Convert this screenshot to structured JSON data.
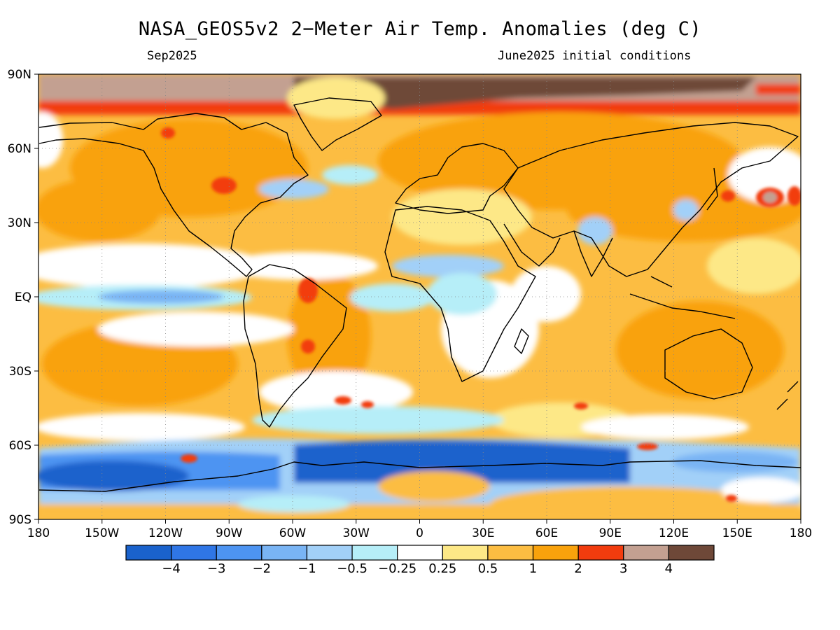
{
  "title": "NASA_GEOS5v2 2−Meter Air Temp. Anomalies (deg C)",
  "subtitle_left": "Sep2025",
  "subtitle_right": "June2025 initial conditions",
  "chart_data": {
    "type": "heatmap",
    "variable": "2-meter air temperature anomaly",
    "units": "deg C",
    "lon_range": [
      -180,
      180
    ],
    "lat_range": [
      -90,
      90
    ],
    "lat_ticks": [
      "90N",
      "60N",
      "30N",
      "EQ",
      "30S",
      "60S",
      "90S"
    ],
    "lat_values": [
      90,
      60,
      30,
      0,
      -30,
      -60,
      -90
    ],
    "lon_ticks": [
      "180",
      "150W",
      "120W",
      "90W",
      "60W",
      "30W",
      "0",
      "30E",
      "60E",
      "90E",
      "120E",
      "150E",
      "180"
    ],
    "lon_values": [
      -180,
      -150,
      -120,
      -90,
      -60,
      -30,
      0,
      30,
      60,
      90,
      120,
      150,
      180
    ],
    "colorbar": {
      "labels": [
        "−4",
        "−3",
        "−2",
        "−1",
        "−0.5",
        "−0.25",
        "0.25",
        "0.5",
        "1",
        "2",
        "3",
        "4"
      ],
      "levels": [
        -4,
        -3,
        -2,
        -1,
        -0.5,
        -0.25,
        0.25,
        0.5,
        1,
        2,
        3,
        4
      ],
      "colors": [
        "#1a62cc",
        "#2f76e6",
        "#4d94f2",
        "#79b4f4",
        "#a2d0f8",
        "#b6eef8",
        "#ffffff",
        "#fde887",
        "#fcbd42",
        "#f9a20c",
        "#f23c0e",
        "#c3a091",
        "#6e4838"
      ]
    },
    "grid": true,
    "features": [
      {
        "region": "Arctic Ocean",
        "anomaly": "> 3 (up to > 4 near 0-30E)"
      },
      {
        "region": "Southern Ocean 55S-70S, 60W-90E",
        "anomaly": "-2 to -4"
      },
      {
        "region": "Equatorial Pacific",
        "anomaly": "-0.25 to -1"
      },
      {
        "region": "Equatorial Atlantic and central Africa",
        "anomaly": "-0.5 to -1"
      },
      {
        "region": "North America",
        "anomaly": "0.5 to 2"
      },
      {
        "region": "Eurasia",
        "anomaly": "0.5 to 2"
      },
      {
        "region": "South America (central)",
        "anomaly": "1 to 3"
      }
    ]
  }
}
